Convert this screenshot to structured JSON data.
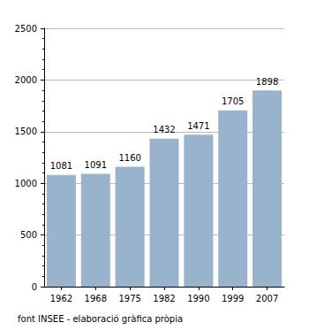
{
  "chart_data": {
    "type": "bar",
    "categories": [
      "1962",
      "1968",
      "1975",
      "1982",
      "1990",
      "1999",
      "2007"
    ],
    "values": [
      1081,
      1091,
      1160,
      1432,
      1471,
      1705,
      1898
    ],
    "color": "#9ab3cc",
    "ylim": [
      0,
      2500
    ],
    "yticks": [
      0,
      500,
      1000,
      1500,
      2000,
      2500
    ],
    "grid": true,
    "data_labels": true,
    "caption": "font INSEE - elaboració gràfica pròpia"
  }
}
